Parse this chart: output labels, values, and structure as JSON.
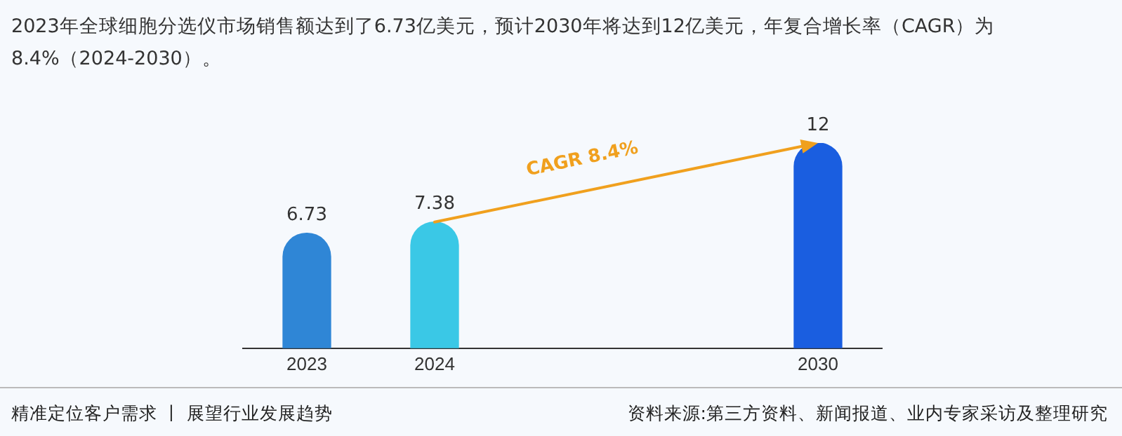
{
  "chart_data": {
    "type": "bar",
    "title": "2023年全球细胞分选仪市场销售额达到了6.73亿美元，预计2030年将达到12亿美元，年复合增长率（CAGR）为8.4%（2024-2030）。",
    "categories": [
      "2023",
      "2024",
      null,
      null,
      "2030"
    ],
    "values": [
      6.73,
      7.38,
      null,
      null,
      12
    ],
    "colors": [
      "#2f86d6",
      "#3ac8e6",
      null,
      null,
      "#1a5ee0"
    ],
    "relative": false,
    "data_labels": true,
    "legend": false,
    "grid": false,
    "annotations": [
      "CAGR 8.4%",
      "精准定位客户需求 丨 展望行业发展趋势",
      "资料来源:第三方资料、新闻报道、业内专家采访及整理研究"
    ]
  }
}
